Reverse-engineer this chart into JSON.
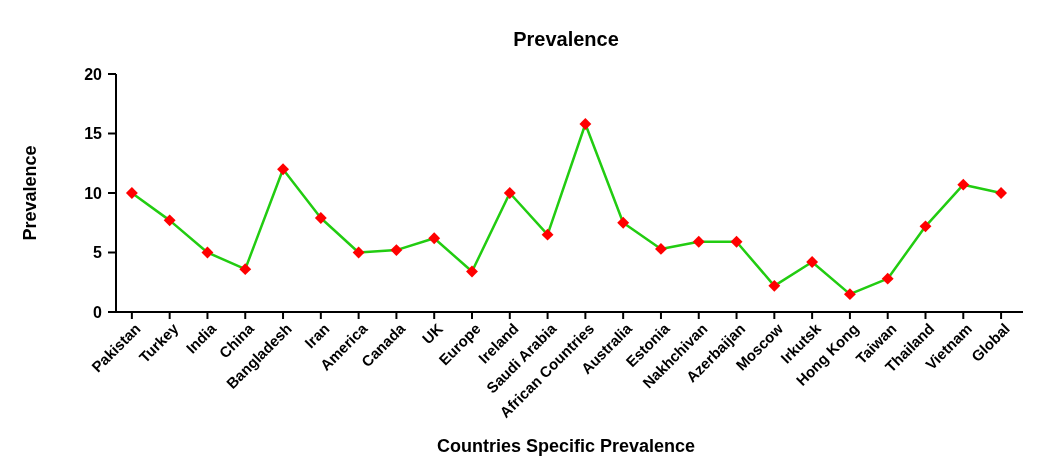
{
  "chart_data": {
    "type": "line",
    "title": "Prevalence",
    "xlabel": "Countries Specific Prevalence",
    "ylabel": "Prevalence",
    "categories": [
      "Pakistan",
      "Turkey",
      "India",
      "China",
      "Bangladesh",
      "Iran",
      "America",
      "Canada",
      "UK",
      "Europe",
      "Ireland",
      "Saudi Arabia",
      "African Countries",
      "Australia",
      "Estonia",
      "Nakhchivan",
      "Azerbaijan",
      "Moscow",
      "Irkutsk",
      "Hong Kong",
      "Taiwan",
      "Thailand",
      "Vietnam",
      "Global"
    ],
    "series": [
      {
        "color": "#22cc11",
        "values": [
          10,
          7.7,
          5,
          3.6,
          12,
          7.9,
          5,
          5.2,
          6.2,
          3.4,
          10,
          6.5,
          15.8,
          7.5,
          5.3,
          5.9,
          5.9,
          2.2,
          4.2,
          1.5,
          2.8,
          7.2,
          10.7,
          10
        ]
      }
    ],
    "ylim": [
      0,
      20
    ],
    "yticks": [
      0,
      5,
      10,
      15,
      20
    ],
    "grid": false,
    "marker": "diamond",
    "line_style": "solid"
  }
}
